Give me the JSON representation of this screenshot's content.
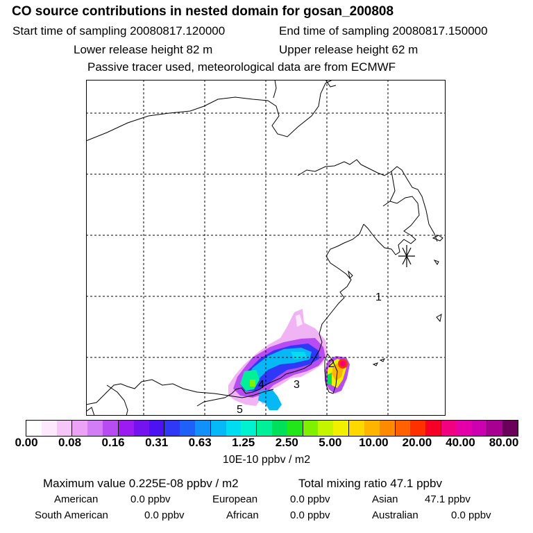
{
  "title": "CO  source contributions in nested domain for gosan_200808",
  "start_time": "Start time of sampling 20080817.120000",
  "end_time": "End time of sampling 20080817.150000",
  "lower_release": "Lower release height   82 m",
  "upper_release": "Upper release height   62 m",
  "tracer_note": "Passive tracer used, meteorological data are from ECMWF",
  "map_labels": [
    "1",
    "2",
    "3",
    "4",
    "5"
  ],
  "colorbar": {
    "tick_labels": [
      "0.00",
      "0.08",
      "0.16",
      "0.31",
      "0.63",
      "1.25",
      "2.50",
      "5.00",
      "10.00",
      "20.00",
      "40.00",
      "80.00"
    ],
    "unit": "10E-10 ppbv / m2",
    "colors": [
      "#ffffff",
      "#fde8fd",
      "#f6c6f8",
      "#eda2f5",
      "#d27df5",
      "#b64cf2",
      "#9a1cf0",
      "#7512f0",
      "#4d12f2",
      "#2e38f6",
      "#1f60f8",
      "#1090f8",
      "#06b8f6",
      "#00ddf0",
      "#00f3d0",
      "#00f09a",
      "#00e05a",
      "#23e61a",
      "#7ef000",
      "#c5f400",
      "#f2f000",
      "#ffd800",
      "#ffb400",
      "#ff8a00",
      "#ff6000",
      "#ff3000",
      "#f70028",
      "#f10080",
      "#e400a8",
      "#cc00b0",
      "#a80090",
      "#6a005a"
    ]
  },
  "stats": {
    "max_value": "Maximum value  0.225E-08 ppbv / m2",
    "total_mixing": "Total mixing ratio       47.1 ppbv"
  },
  "contributions": {
    "american_label": "American",
    "american_value": "0.0 ppbv",
    "european_label": "European",
    "european_value": "0.0 ppbv",
    "asian_label": "Asian",
    "asian_value": "47.1 ppbv",
    "south_american_label": "South American",
    "south_american_value": "0.0 ppbv",
    "african_label": "African",
    "african_value": "0.0 ppbv",
    "australian_label": "Australian",
    "australian_value": "0.0 ppbv"
  }
}
